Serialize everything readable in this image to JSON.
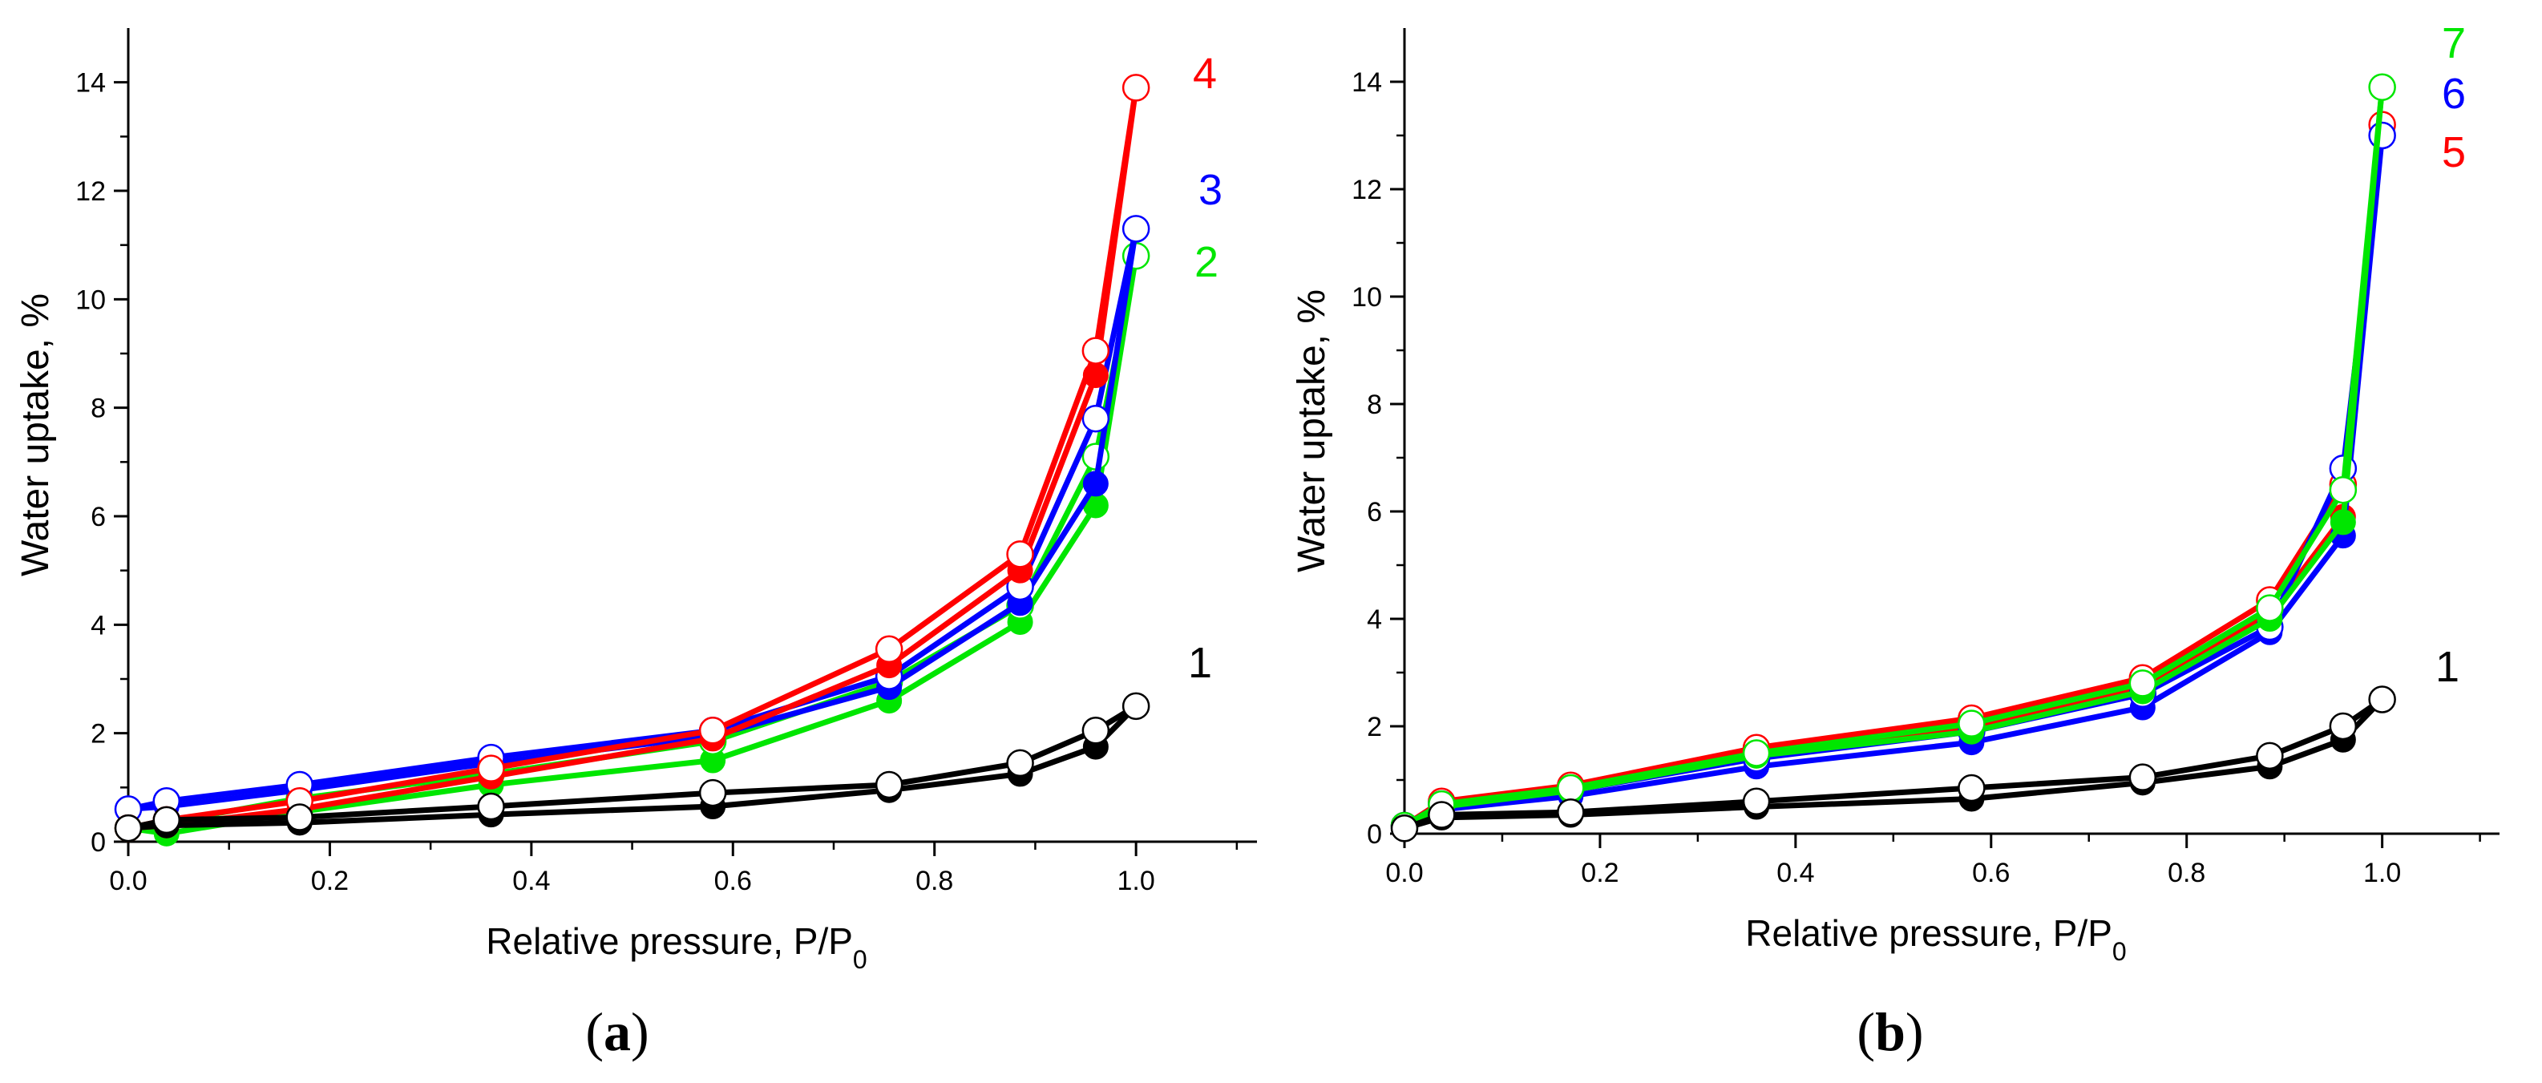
{
  "chart_data": [
    {
      "panel": "(a)",
      "panel_letter": "a",
      "type": "line",
      "xlabel": "Relative pressure, P/P",
      "xlabel_sub": "0",
      "ylabel": "Water uptake, %",
      "xlim": [
        0.0,
        1.12
      ],
      "ylim": [
        0,
        15
      ],
      "xticks": [
        "0.0",
        "0.2",
        "0.4",
        "0.6",
        "0.8",
        "1.0"
      ],
      "yticks": [
        "0",
        "2",
        "4",
        "6",
        "8",
        "10",
        "12",
        "14"
      ],
      "x": [
        0.0,
        0.038,
        0.17,
        0.36,
        0.58,
        0.755,
        0.885,
        0.96,
        1.0
      ],
      "series": [
        {
          "name": "1",
          "color": "#000000",
          "adsorption": [
            0.25,
            0.3,
            0.35,
            0.5,
            0.65,
            0.95,
            1.25,
            1.75,
            2.5
          ],
          "desorption": [
            0.25,
            0.4,
            0.45,
            0.65,
            0.9,
            1.05,
            1.45,
            2.05,
            2.5
          ]
        },
        {
          "name": "2",
          "color": "#00e600",
          "adsorption": [
            0.25,
            0.15,
            0.55,
            1.05,
            1.5,
            2.6,
            4.05,
            6.2,
            10.8
          ],
          "desorption": [
            0.25,
            0.35,
            0.8,
            1.25,
            1.85,
            2.95,
            4.35,
            7.1,
            10.8
          ]
        },
        {
          "name": "3",
          "color": "#0000ff",
          "adsorption": [
            0.6,
            0.65,
            0.95,
            1.45,
            1.95,
            2.85,
            4.4,
            6.6,
            11.3
          ],
          "desorption": [
            0.6,
            0.75,
            1.05,
            1.55,
            2.05,
            3.05,
            4.7,
            7.8,
            11.3
          ]
        },
        {
          "name": "4",
          "color": "#ff0000",
          "adsorption": [
            0.25,
            0.3,
            0.6,
            1.2,
            1.9,
            3.25,
            5.0,
            8.6,
            13.9
          ],
          "desorption": [
            0.25,
            0.4,
            0.75,
            1.35,
            2.05,
            3.55,
            5.3,
            9.05,
            13.9
          ]
        }
      ]
    },
    {
      "panel": "(b)",
      "panel_letter": "b",
      "type": "line",
      "xlabel": "Relative pressure, P/P",
      "xlabel_sub": "0",
      "ylabel": "Water uptake, %",
      "xlim": [
        0.0,
        1.12
      ],
      "ylim": [
        0,
        15
      ],
      "xticks": [
        "0.0",
        "0.2",
        "0.4",
        "0.6",
        "0.8",
        "1.0"
      ],
      "yticks": [
        "0",
        "2",
        "4",
        "6",
        "8",
        "10",
        "12",
        "14"
      ],
      "x": [
        0.0,
        0.038,
        0.17,
        0.36,
        0.58,
        0.755,
        0.885,
        0.96,
        1.0
      ],
      "series": [
        {
          "name": "1",
          "color": "#000000",
          "adsorption": [
            0.1,
            0.3,
            0.35,
            0.5,
            0.65,
            0.95,
            1.25,
            1.75,
            2.5
          ],
          "desorption": [
            0.1,
            0.35,
            0.4,
            0.6,
            0.85,
            1.05,
            1.45,
            2.0,
            2.5
          ]
        },
        {
          "name": "5",
          "color": "#ff0000",
          "adsorption": [
            0.15,
            0.5,
            0.85,
            1.5,
            2.0,
            2.75,
            4.1,
            5.9,
            13.2
          ],
          "desorption": [
            0.15,
            0.6,
            0.9,
            1.6,
            2.15,
            2.9,
            4.35,
            6.5,
            13.2
          ]
        },
        {
          "name": "6",
          "color": "#0000ff",
          "adsorption": [
            0.15,
            0.45,
            0.7,
            1.25,
            1.7,
            2.35,
            3.75,
            5.55,
            13.0
          ],
          "desorption": [
            0.15,
            0.55,
            0.8,
            1.4,
            1.9,
            2.6,
            3.85,
            6.8,
            13.0
          ]
        },
        {
          "name": "7",
          "color": "#00e600",
          "adsorption": [
            0.15,
            0.5,
            0.8,
            1.45,
            1.9,
            2.65,
            4.0,
            5.8,
            13.9
          ],
          "desorption": [
            0.15,
            0.55,
            0.85,
            1.5,
            2.05,
            2.8,
            4.2,
            6.4,
            13.9
          ]
        }
      ]
    }
  ]
}
